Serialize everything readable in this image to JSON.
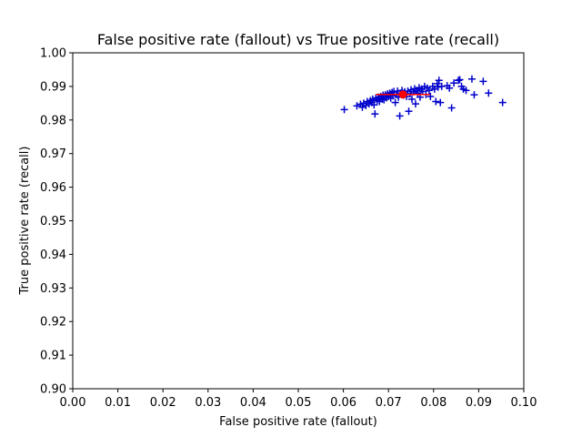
{
  "chart_data": {
    "type": "scatter",
    "title": "False positive rate (fallout) vs True positive rate (recall)",
    "xlabel": "False positive rate (fallout)",
    "ylabel": "True positive rate (recall)",
    "xlim": [
      0.0,
      0.1
    ],
    "ylim": [
      0.9,
      1.0
    ],
    "x_ticks": [
      "0.00",
      "0.01",
      "0.02",
      "0.03",
      "0.04",
      "0.05",
      "0.06",
      "0.07",
      "0.08",
      "0.09",
      "0.10"
    ],
    "y_ticks": [
      "0.90",
      "0.91",
      "0.92",
      "0.93",
      "0.94",
      "0.95",
      "0.96",
      "0.97",
      "0.98",
      "0.99",
      "1.00"
    ],
    "grid": false,
    "colors": {
      "points": "#0000cc",
      "mean": "#ff0000"
    },
    "series": [
      {
        "marker": "plus",
        "color": "#0000cc",
        "points": [
          [
            0.0602,
            0.9831
          ],
          [
            0.063,
            0.9842
          ],
          [
            0.0638,
            0.9847
          ],
          [
            0.0642,
            0.9838
          ],
          [
            0.0645,
            0.985
          ],
          [
            0.065,
            0.9843
          ],
          [
            0.0653,
            0.9855
          ],
          [
            0.0657,
            0.9848
          ],
          [
            0.066,
            0.9858
          ],
          [
            0.0663,
            0.9852
          ],
          [
            0.0665,
            0.9862
          ],
          [
            0.0668,
            0.9845
          ],
          [
            0.067,
            0.9818
          ],
          [
            0.0672,
            0.9865
          ],
          [
            0.0675,
            0.9858
          ],
          [
            0.0678,
            0.9868
          ],
          [
            0.068,
            0.9855
          ],
          [
            0.0683,
            0.987
          ],
          [
            0.0686,
            0.9862
          ],
          [
            0.0688,
            0.9874
          ],
          [
            0.069,
            0.986
          ],
          [
            0.0693,
            0.9875
          ],
          [
            0.0695,
            0.9866
          ],
          [
            0.0698,
            0.9878
          ],
          [
            0.07,
            0.987
          ],
          [
            0.0703,
            0.988
          ],
          [
            0.0705,
            0.9865
          ],
          [
            0.0708,
            0.9882
          ],
          [
            0.071,
            0.9872
          ],
          [
            0.0712,
            0.9885
          ],
          [
            0.0715,
            0.9852
          ],
          [
            0.0718,
            0.9876
          ],
          [
            0.072,
            0.9886
          ],
          [
            0.0722,
            0.9868
          ],
          [
            0.0725,
            0.9812
          ],
          [
            0.0728,
            0.988
          ],
          [
            0.073,
            0.9888
          ],
          [
            0.0733,
            0.9874
          ],
          [
            0.0736,
            0.9884
          ],
          [
            0.074,
            0.987
          ],
          [
            0.0743,
            0.9886
          ],
          [
            0.0745,
            0.9826
          ],
          [
            0.0748,
            0.9878
          ],
          [
            0.075,
            0.989
          ],
          [
            0.0752,
            0.9862
          ],
          [
            0.0755,
            0.9884
          ],
          [
            0.0758,
            0.9893
          ],
          [
            0.076,
            0.9848
          ],
          [
            0.0763,
            0.9888
          ],
          [
            0.0765,
            0.988
          ],
          [
            0.0768,
            0.9896
          ],
          [
            0.077,
            0.9868
          ],
          [
            0.0773,
            0.9892
          ],
          [
            0.0776,
            0.9885
          ],
          [
            0.078,
            0.99
          ],
          [
            0.0783,
            0.9876
          ],
          [
            0.0786,
            0.9895
          ],
          [
            0.079,
            0.9888
          ],
          [
            0.0793,
            0.987
          ],
          [
            0.0798,
            0.99
          ],
          [
            0.0802,
            0.9892
          ],
          [
            0.0805,
            0.9855
          ],
          [
            0.0808,
            0.9908
          ],
          [
            0.081,
            0.9898
          ],
          [
            0.0812,
            0.9918
          ],
          [
            0.0815,
            0.9852
          ],
          [
            0.0818,
            0.99
          ],
          [
            0.083,
            0.9902
          ],
          [
            0.0835,
            0.9895
          ],
          [
            0.084,
            0.9836
          ],
          [
            0.0845,
            0.991
          ],
          [
            0.0855,
            0.9918
          ],
          [
            0.0858,
            0.992
          ],
          [
            0.0862,
            0.99
          ],
          [
            0.0866,
            0.9892
          ],
          [
            0.0872,
            0.9888
          ],
          [
            0.0885,
            0.9922
          ],
          [
            0.089,
            0.9875
          ],
          [
            0.091,
            0.9915
          ],
          [
            0.0922,
            0.988
          ],
          [
            0.0953,
            0.9852
          ]
        ]
      }
    ],
    "mean_point": {
      "x": 0.0732,
      "y": 0.9876,
      "x_err": [
        0.0672,
        0.0792
      ],
      "y_err": [
        0.9866,
        0.9886
      ],
      "color": "#ff0000"
    }
  }
}
